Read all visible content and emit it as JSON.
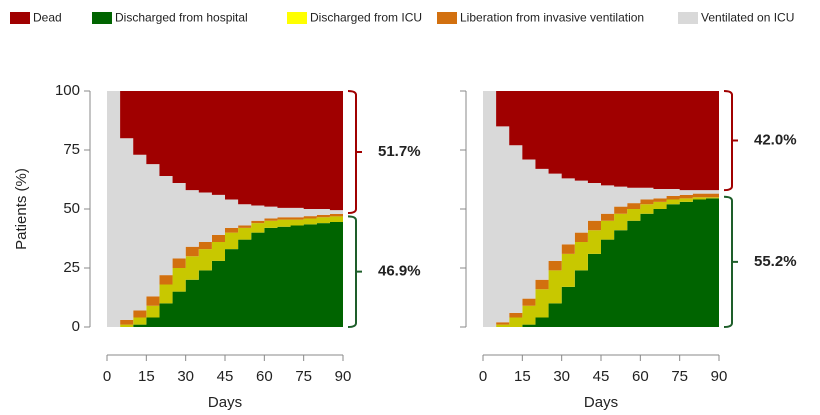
{
  "chart_data": [
    {
      "type": "stacked_step_area",
      "ylabel": "Patients (%)",
      "xlabel": "Days",
      "ytick_labels": true,
      "x": [
        0,
        5,
        10,
        15,
        20,
        25,
        30,
        35,
        40,
        45,
        50,
        55,
        60,
        65,
        70,
        75,
        80,
        85,
        90
      ],
      "xlim": [
        0,
        90
      ],
      "xticks": [
        0,
        15,
        30,
        45,
        60,
        75,
        90
      ],
      "ylim": [
        0,
        100
      ],
      "yticks": [
        0,
        25,
        50,
        75,
        100
      ],
      "series": [
        {
          "name": "Dead",
          "color": "#a00000",
          "values": [
            0,
            20,
            27,
            31,
            36,
            39,
            42,
            43,
            44,
            46,
            48,
            48.5,
            49,
            49.5,
            49.5,
            50,
            50,
            50.5,
            51.7
          ]
        },
        {
          "name": "Discharged from hospital",
          "color": "#006400",
          "values": [
            0,
            0,
            1,
            4,
            10,
            15,
            20,
            24,
            28,
            33,
            37,
            40,
            42,
            42.5,
            43,
            43.5,
            44,
            44.5,
            44.5
          ]
        },
        {
          "name": "Discharged from ICU",
          "color": "#c8c800",
          "values": [
            0,
            1,
            3,
            5,
            8,
            10,
            10,
            9,
            8,
            7,
            5,
            4,
            3,
            3,
            2.5,
            2.5,
            2.5,
            2.4,
            2.4
          ]
        },
        {
          "name": "Liberation from invasive ventilation",
          "color": "#d2700f",
          "values": [
            0,
            2,
            3,
            4,
            4,
            4,
            4,
            3,
            3,
            2,
            1,
            1,
            1,
            1,
            1,
            1,
            1,
            1,
            0.8
          ]
        },
        {
          "name": "Ventilated on ICU",
          "color": "#d9d9d9",
          "values": [
            100,
            77,
            66,
            56,
            42,
            32,
            24,
            21,
            17,
            12,
            9,
            6.5,
            5,
            4,
            4,
            3,
            2.5,
            1.6,
            0.6
          ]
        }
      ],
      "annotations": [
        {
          "text": "51.7%",
          "color": "#a00000"
        },
        {
          "text": "46.9%",
          "color": "#1e5e2a"
        }
      ]
    },
    {
      "type": "stacked_step_area",
      "xlabel": "Days",
      "ytick_labels": false,
      "x": [
        0,
        5,
        10,
        15,
        20,
        25,
        30,
        35,
        40,
        45,
        50,
        55,
        60,
        65,
        70,
        75,
        80,
        85,
        90
      ],
      "xlim": [
        0,
        90
      ],
      "xticks": [
        0,
        15,
        30,
        45,
        60,
        75,
        90
      ],
      "ylim": [
        0,
        100
      ],
      "yticks": [
        0,
        25,
        50,
        75,
        100
      ],
      "series": [
        {
          "color": "#a00000",
          "values": [
            0,
            15,
            23,
            29,
            33,
            35,
            37,
            38,
            39,
            40,
            40.5,
            41,
            41,
            41.5,
            41.5,
            42,
            42,
            42,
            42
          ]
        },
        {
          "color": "#006400",
          "values": [
            0,
            0,
            0,
            1,
            4,
            10,
            17,
            24,
            31,
            37,
            41,
            45,
            48,
            50,
            52,
            53,
            54,
            54.5,
            55
          ]
        },
        {
          "color": "#c8c800",
          "values": [
            0,
            1,
            4,
            8,
            12,
            14,
            14,
            12,
            10,
            8,
            7,
            5,
            4,
            3,
            2,
            1.5,
            1,
            0.5,
            0.2
          ]
        },
        {
          "color": "#d2700f",
          "values": [
            0,
            1,
            2,
            3,
            4,
            4,
            4,
            4,
            4,
            3,
            3,
            2.5,
            2,
            1.5,
            1.5,
            1.5,
            1.5,
            1.5,
            1.5
          ]
        },
        {
          "color": "#d9d9d9",
          "values": [
            100,
            83,
            71,
            59,
            47,
            37,
            28,
            22,
            16,
            12,
            8.5,
            6.5,
            5,
            4,
            3,
            2,
            1.5,
            1.5,
            1.3
          ]
        }
      ],
      "annotations": [
        {
          "text": "42.0%",
          "color": "#a00000"
        },
        {
          "text": "55.2%",
          "color": "#1e5e2a"
        }
      ]
    }
  ]
}
